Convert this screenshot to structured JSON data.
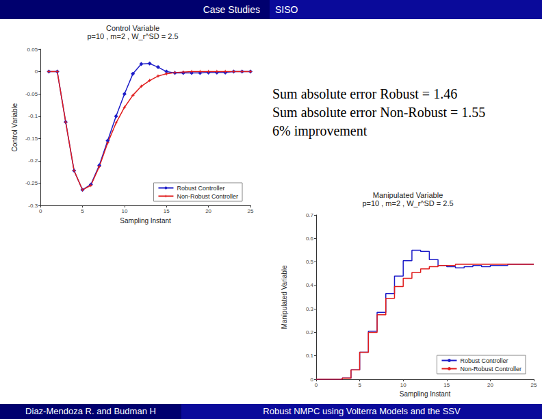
{
  "header": {
    "section": "Case Studies",
    "subsection": "SISO"
  },
  "footer": {
    "authors": "Diaz-Mendoza R. and Budman H",
    "title": "Robust NMPC using Volterra Models and the SSV"
  },
  "notes": [
    "Sum absolute error Robust = 1.46",
    "Sum absolute error Non-Robust  = 1.55",
    "6% improvement"
  ],
  "chart_data": [
    {
      "type": "line",
      "title": "Control Variable",
      "subtitle": "p=10 , m=2 , W_r^SD = 2.5",
      "x_label": "Sampling Instant",
      "y_label": "Control Variable",
      "xlim": [
        0,
        25
      ],
      "xticks": [
        0,
        5,
        10,
        15,
        20,
        25
      ],
      "ylim": [
        -0.3,
        0.05
      ],
      "yticks": [
        -0.3,
        -0.25,
        -0.2,
        -0.15,
        -0.1,
        -0.05,
        0,
        0.05
      ],
      "grid": false,
      "legend": "lower right",
      "x": [
        1,
        2,
        3,
        4,
        5,
        6,
        7,
        8,
        9,
        10,
        11,
        12,
        13,
        14,
        15,
        16,
        17,
        18,
        19,
        20,
        21,
        22,
        23,
        24,
        25
      ],
      "series": [
        {
          "name": "Robust Controller",
          "color": "#1c1cc8",
          "marker": "diamond",
          "line_style": "solid",
          "values": [
            0,
            0,
            -0.113,
            -0.222,
            -0.265,
            -0.253,
            -0.21,
            -0.155,
            -0.1,
            -0.05,
            -0.005,
            0.017,
            0.018,
            0.01,
            0,
            -0.003,
            -0.003,
            -0.003,
            -0.003,
            -0.002,
            -0.002,
            -0.002,
            0,
            0,
            0
          ]
        },
        {
          "name": "Non-Robust Controller",
          "color": "#e01c1c",
          "marker": "star",
          "line_style": "solid",
          "values": [
            0,
            0,
            -0.113,
            -0.222,
            -0.265,
            -0.255,
            -0.213,
            -0.16,
            -0.115,
            -0.08,
            -0.053,
            -0.033,
            -0.02,
            -0.01,
            -0.005,
            -0.002,
            -0.001,
            0,
            0,
            0,
            0,
            0,
            0,
            0,
            0
          ]
        }
      ]
    },
    {
      "type": "line",
      "title": "Manipulated Variable",
      "subtitle": "p=10 , m=2 , W_r^SD = 2.5",
      "x_label": "Sampling Instant",
      "y_label": "Manipulated Variable",
      "xlim": [
        0,
        25
      ],
      "xticks": [
        0,
        5,
        10,
        15,
        20,
        25
      ],
      "ylim": [
        0,
        0.7
      ],
      "yticks": [
        0,
        0.1,
        0.2,
        0.3,
        0.4,
        0.5,
        0.6,
        0.7
      ],
      "grid": false,
      "legend": "lower right",
      "x": [
        0,
        1,
        2,
        3,
        4,
        5,
        6,
        7,
        8,
        9,
        10,
        11,
        12,
        13,
        14,
        15,
        16,
        17,
        18,
        19,
        20,
        21,
        22,
        23,
        24,
        25
      ],
      "series": [
        {
          "name": "Robust Controller",
          "color": "#1c1cc8",
          "marker": "none",
          "line_style": "step",
          "values": [
            0,
            0,
            0,
            0.005,
            0.04,
            0.115,
            0.205,
            0.285,
            0.365,
            0.44,
            0.505,
            0.55,
            0.545,
            0.51,
            0.485,
            0.48,
            0.475,
            0.48,
            0.485,
            0.48,
            0.485,
            0.485,
            0.49,
            0.49,
            0.49,
            0.49
          ]
        },
        {
          "name": "Non-Robust Controller",
          "color": "#e01c1c",
          "marker": "none",
          "line_style": "step",
          "values": [
            0,
            0,
            0,
            0.005,
            0.04,
            0.115,
            0.2,
            0.275,
            0.345,
            0.395,
            0.43,
            0.455,
            0.47,
            0.48,
            0.485,
            0.485,
            0.49,
            0.49,
            0.49,
            0.49,
            0.49,
            0.49,
            0.49,
            0.49,
            0.49,
            0.49
          ]
        }
      ]
    }
  ]
}
